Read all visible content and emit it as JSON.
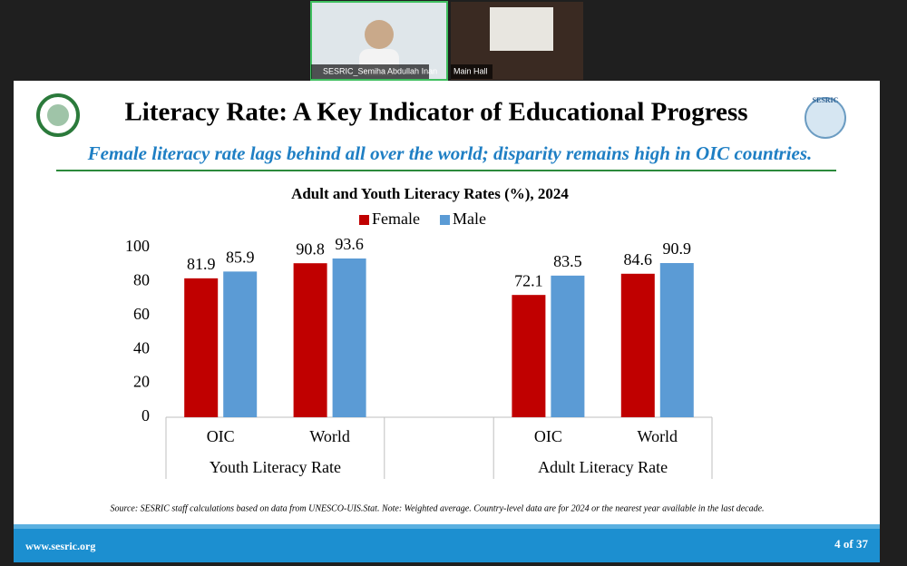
{
  "video_tiles": [
    {
      "label": "SESRIC_Semiha Abdullah Inan"
    },
    {
      "label": "Main Hall"
    }
  ],
  "slide": {
    "title": "Literacy Rate: A Key Indicator of Educational Progress",
    "subtitle": "Female literacy rate lags behind all over the world; disparity remains high in OIC countries.",
    "logo_text": "SESRIC",
    "source": "Source: SESRIC staff calculations based on data from UNESCO-UIS.Stat. Note: Weighted average. Country-level data are for 2024 or the nearest year available in the last decade.",
    "website": "www.sesric.org",
    "page": "4 of 37"
  },
  "chart_data": {
    "type": "bar",
    "title": "Adult and Youth Literacy Rates (%), 2024",
    "categories": [
      "OIC",
      "World",
      null,
      "OIC",
      "World"
    ],
    "category_groups": [
      "Youth Literacy Rate",
      "Youth Literacy Rate",
      null,
      "Adult Literacy Rate",
      "Adult Literacy Rate"
    ],
    "series": [
      {
        "name": "Female",
        "color": "#c00000",
        "values": [
          81.9,
          90.8,
          null,
          72.1,
          84.6
        ]
      },
      {
        "name": "Male",
        "color": "#5b9bd5",
        "values": [
          85.9,
          93.6,
          null,
          83.5,
          90.9
        ]
      }
    ],
    "ylim": [
      0,
      100
    ],
    "yticks": [
      0,
      20,
      40,
      60,
      80,
      100
    ],
    "grid": false,
    "legend": "top"
  }
}
